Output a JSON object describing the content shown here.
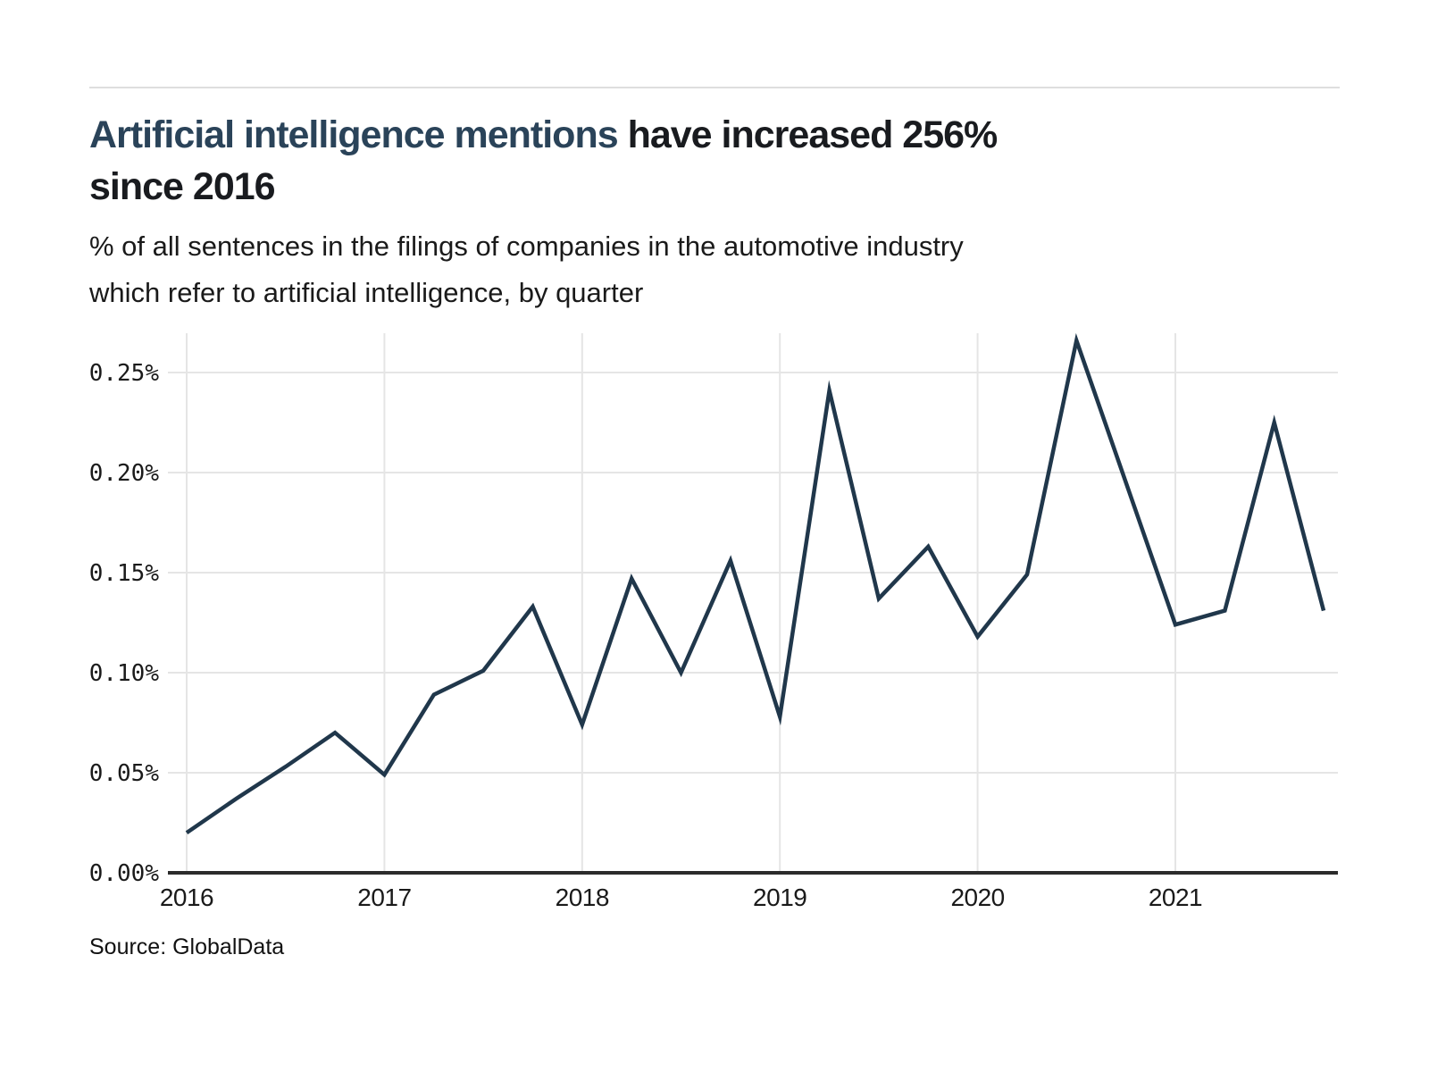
{
  "page": {
    "background": "#ffffff",
    "divider_color": "#dedede"
  },
  "header": {
    "title_highlight": "Artificial intelligence mentions",
    "title_rest": " have increased 256%",
    "title_line2": "since 2016",
    "subtitle_line1": "% of all sentences in the filings of companies in the automotive industry",
    "subtitle_line2": "which refer to artificial intelligence, by quarter"
  },
  "footer": {
    "source": "Source: GlobalData"
  },
  "chart_data": {
    "type": "line",
    "title": "Artificial intelligence mentions have increased 256% since 2016",
    "subtitle": "% of all sentences in the filings of companies in the automotive industry which refer to artificial intelligence, by quarter",
    "unit": "%",
    "categories": [
      "2016 Q1",
      "2016 Q2",
      "2016 Q3",
      "2016 Q4",
      "2017 Q1",
      "2017 Q2",
      "2017 Q3",
      "2017 Q4",
      "2018 Q1",
      "2018 Q2",
      "2018 Q3",
      "2018 Q4",
      "2019 Q1",
      "2019 Q2",
      "2019 Q3",
      "2019 Q4",
      "2020 Q1",
      "2020 Q2",
      "2020 Q3",
      "2020 Q4",
      "2021 Q1",
      "2021 Q2",
      "2021 Q3",
      "2021 Q4"
    ],
    "values": [
      0.02,
      0.037,
      0.053,
      0.07,
      0.049,
      0.089,
      0.101,
      0.133,
      0.074,
      0.147,
      0.1,
      0.156,
      0.078,
      0.241,
      0.137,
      0.163,
      0.118,
      0.149,
      0.266,
      0.195,
      0.124,
      0.131,
      0.225,
      0.131
    ],
    "xlabel": "",
    "ylabel": "",
    "ylim": [
      0,
      0.27
    ],
    "yticks": [
      {
        "label": "0.00%",
        "value": 0.0
      },
      {
        "label": "0.05%",
        "value": 0.05
      },
      {
        "label": "0.10%",
        "value": 0.1
      },
      {
        "label": "0.15%",
        "value": 0.15
      },
      {
        "label": "0.20%",
        "value": 0.2
      },
      {
        "label": "0.25%",
        "value": 0.25
      }
    ],
    "xticks": [
      {
        "label": "2016",
        "index": 0
      },
      {
        "label": "2017",
        "index": 4
      },
      {
        "label": "2018",
        "index": 8
      },
      {
        "label": "2019",
        "index": 12
      },
      {
        "label": "2020",
        "index": 16
      },
      {
        "label": "2021",
        "index": 20
      }
    ],
    "grid": true,
    "legend": false,
    "line_color": "#20374b",
    "axis_color": "#2b2b2b",
    "grid_color": "#e5e5e5",
    "tick_label_color": "#1a1a1a"
  }
}
